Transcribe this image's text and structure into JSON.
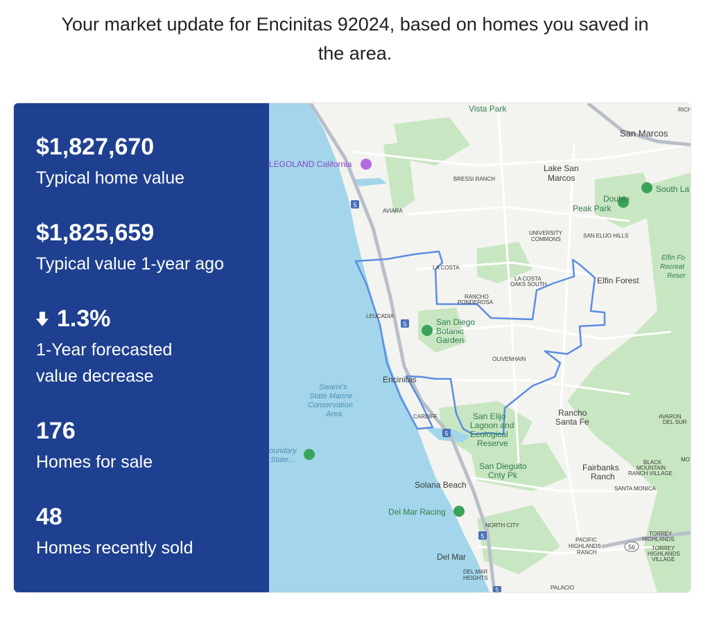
{
  "header": {
    "line1": "Your market update for Encinitas 92024, based on homes you saved in",
    "line2": "the area."
  },
  "stats": {
    "home_value": "$1,827,670",
    "home_value_label": "Typical home value",
    "year_ago_value": "$1,825,659",
    "year_ago_label": "Typical value 1-year ago",
    "forecast_value": "1.3%",
    "forecast_label_1": "1-Year forecasted",
    "forecast_label_2": "value decrease",
    "for_sale_count": "176",
    "for_sale_label": "Homes for sale",
    "sold_count": "48",
    "sold_label": "Homes recently sold"
  },
  "map": {
    "places": {
      "vista_park": "Vista Park",
      "san_marcos": "San Marcos",
      "legoland": "LEGOLAND California",
      "bressi_ranch": "BRESSI RANCH",
      "lake_san_marcos_1": "Lake San",
      "lake_san_marcos_2": "Marcos",
      "south_la": "South La",
      "double_peak_1": "Double",
      "double_peak_2": "Peak Park",
      "aviara": "AVIARA",
      "university_commons_1": "UNIVERSITY",
      "university_commons_2": "COMMONS",
      "san_elijo_hills": "SAN ELIJO HILLS",
      "elfin_reserve_1": "Elfin Fo",
      "elfin_reserve_2": "Recreat",
      "elfin_reserve_3": "Reser",
      "la_costa": "LA COSTA",
      "la_costa_oaks_1": "LA COSTA",
      "la_costa_oaks_2": "OAKS SOUTH",
      "elfin_forest": "Elfin Forest",
      "rancho_ponderosa_1": "RANCHO",
      "rancho_ponderosa_2": "PONDEROSA",
      "leucadia": "LEUCADIA",
      "botanic_1": "San Diego",
      "botanic_2": "Botanic",
      "botanic_3": "Garden",
      "olivenhain": "OLIVENHAIN",
      "swamis_1": "Swami's",
      "swamis_2": "State Marine",
      "swamis_3": "Conservation",
      "swamis_4": "Area",
      "encinitas": "Encinitas",
      "cardiff": "CARDIFF",
      "lagoon_1": "San Elijo",
      "lagoon_2": "Lagoon and",
      "lagoon_3": "Ecological",
      "lagoon_4": "Reserve",
      "rancho_santa_fe_1": "Rancho",
      "rancho_santa_fe_2": "Santa Fe",
      "avaron_1": "AVARON",
      "avaron_2": "DEL SUR",
      "boundary_1": "oundary",
      "boundary_2": "State...",
      "san_dieguito_1": "San Dieguito",
      "san_dieguito_2": "Cnty Pk",
      "fairbanks_1": "Fairbanks",
      "fairbanks_2": "Ranch",
      "black_mountain_1": "BLACK",
      "black_mountain_2": "MOUNTAIN",
      "black_mountain_3": "RANCH VILLAGE",
      "solana_beach": "Solana Beach",
      "santa_monica": "SANTA MONICA",
      "del_mar_racing": "Del Mar Racing",
      "north_city": "NORTH CITY",
      "pacific_highlands_1": "PACIFIC",
      "pacific_highlands_2": "HIGHLANDS",
      "pacific_highlands_3": "RANCH",
      "torrey_highlands_1": "TORREY",
      "torrey_highlands_2": "HIGHLANDS",
      "torrey_village_1": "TORREY",
      "torrey_village_2": "HIGHLANDS",
      "torrey_village_3": "VILLAGE",
      "del_mar": "Del Mar",
      "del_mar_heights_1": "DEL MAR",
      "del_mar_heights_2": "HEIGHTS",
      "palacio": "PALACIO",
      "rich": "RICH",
      "mo": "MO"
    },
    "highway_shields": [
      "5",
      "5",
      "5",
      "5",
      "5",
      "56"
    ],
    "colors": {
      "water": "#a3d6ea",
      "land": "#f3f3f0",
      "park": "#c7e6c0",
      "boundary": "#5b8de0",
      "panel": "#1f4090"
    }
  }
}
